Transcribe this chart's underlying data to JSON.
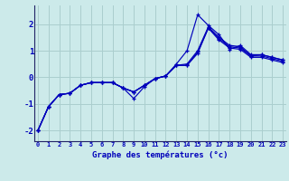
{
  "xlabel": "Graphe des températures (°c)",
  "background_color": "#cceaea",
  "grid_color": "#aacece",
  "line_color": "#0000bb",
  "x": [
    0,
    1,
    2,
    3,
    4,
    5,
    6,
    7,
    8,
    9,
    10,
    11,
    12,
    13,
    14,
    15,
    16,
    17,
    18,
    19,
    20,
    21,
    22,
    23
  ],
  "series1": [
    -2.0,
    -1.1,
    -0.65,
    -0.6,
    -0.3,
    -0.2,
    -0.2,
    -0.2,
    -0.4,
    -0.8,
    -0.35,
    -0.05,
    0.05,
    0.5,
    1.0,
    2.35,
    1.95,
    1.6,
    1.05,
    1.2,
    0.85,
    0.85,
    0.75,
    0.65
  ],
  "series2": [
    -2.0,
    -1.1,
    -0.65,
    -0.6,
    -0.3,
    -0.2,
    -0.2,
    -0.2,
    -0.4,
    -0.55,
    -0.3,
    -0.05,
    0.05,
    0.45,
    0.5,
    1.0,
    1.9,
    1.5,
    1.2,
    1.15,
    0.8,
    0.85,
    0.75,
    0.65
  ],
  "series3": [
    -2.0,
    -1.1,
    -0.65,
    -0.6,
    -0.3,
    -0.2,
    -0.2,
    -0.2,
    -0.4,
    -0.55,
    -0.3,
    -0.05,
    0.05,
    0.45,
    0.45,
    0.95,
    1.85,
    1.45,
    1.15,
    1.1,
    0.8,
    0.8,
    0.7,
    0.6
  ],
  "series4": [
    -2.0,
    -1.1,
    -0.65,
    -0.6,
    -0.3,
    -0.2,
    -0.2,
    -0.2,
    -0.4,
    -0.55,
    -0.3,
    -0.05,
    0.05,
    0.45,
    0.45,
    0.9,
    1.85,
    1.4,
    1.1,
    1.05,
    0.75,
    0.75,
    0.65,
    0.55
  ],
  "ylim": [
    -2.4,
    2.7
  ],
  "yticks": [
    -2,
    -1,
    0,
    1,
    2
  ],
  "xticks": [
    0,
    1,
    2,
    3,
    4,
    5,
    6,
    7,
    8,
    9,
    10,
    11,
    12,
    13,
    14,
    15,
    16,
    17,
    18,
    19,
    20,
    21,
    22,
    23
  ]
}
